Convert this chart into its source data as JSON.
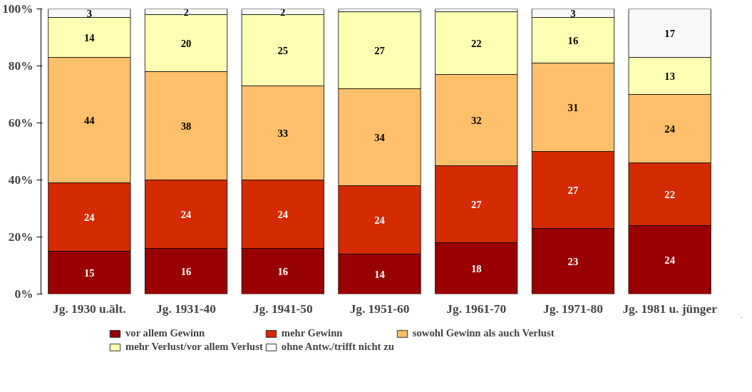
{
  "chart_data": {
    "type": "bar",
    "stacked": true,
    "categories": [
      "Jg. 1930 u.ält.",
      "Jg. 1931-40",
      "Jg. 1941-50",
      "Jg. 1951-60",
      "Jg. 1961-70",
      "Jg. 1971-80",
      "Jg. 1981 u. jünger"
    ],
    "ylim": [
      0,
      100
    ],
    "yticks": [
      {
        "value": 0,
        "label": "0%"
      },
      {
        "value": 20,
        "label": "20%"
      },
      {
        "value": 40,
        "label": "40%"
      },
      {
        "value": 60,
        "label": "60%"
      },
      {
        "value": 80,
        "label": "80%"
      },
      {
        "value": 100,
        "label": "100%"
      }
    ],
    "series": [
      {
        "name": "vor allem Gewinn",
        "color": "#990000",
        "values": [
          15,
          16,
          16,
          14,
          18,
          23,
          24
        ]
      },
      {
        "name": "mehr Gewinn",
        "color": "#d42a00",
        "values": [
          24,
          24,
          24,
          24,
          27,
          27,
          22
        ]
      },
      {
        "name": "sowohl Gewinn als auch Verlust",
        "color": "#ffbf6b",
        "values": [
          44,
          38,
          33,
          34,
          32,
          31,
          24
        ]
      },
      {
        "name": "mehr Verlust/vor allem Verlust",
        "color": "#ffffb3",
        "values": [
          14,
          20,
          25,
          27,
          22,
          16,
          13
        ]
      },
      {
        "name": "ohne Antw./trifft nicht zu",
        "color": "#f8f8f8",
        "values": [
          3,
          2,
          2,
          1,
          1,
          3,
          17
        ],
        "value_labels": [
          "3",
          "2",
          "2",
          null,
          null,
          "3",
          "17"
        ]
      }
    ],
    "grid": false,
    "legend": "bottom",
    "data_labels": true
  }
}
